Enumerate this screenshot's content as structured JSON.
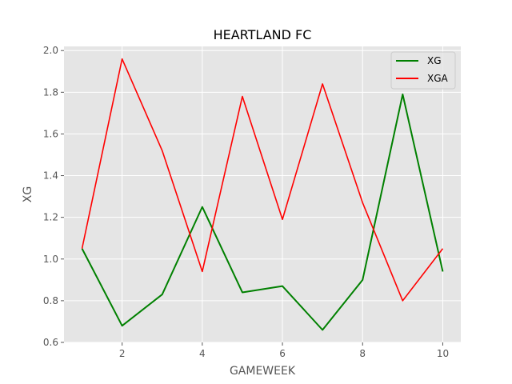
{
  "chart_data": {
    "type": "line",
    "title": "HEARTLAND FC",
    "xlabel": "GAMEWEEK",
    "ylabel": "XG",
    "x": [
      1,
      2,
      3,
      4,
      5,
      6,
      7,
      8,
      9,
      10
    ],
    "xlim": [
      0.55,
      10.45
    ],
    "ylim": [
      0.6,
      2.02
    ],
    "xticks": [
      2,
      4,
      6,
      8,
      10
    ],
    "yticks": [
      0.6,
      0.8,
      1.0,
      1.2,
      1.4,
      1.6,
      1.8,
      2.0
    ],
    "xtick_labels": [
      "2",
      "4",
      "6",
      "8",
      "10"
    ],
    "ytick_labels": [
      "0.6",
      "0.8",
      "1.0",
      "1.2",
      "1.4",
      "1.6",
      "1.8",
      "2.0"
    ],
    "grid": true,
    "legend_position": "top-right",
    "series": [
      {
        "name": "XG",
        "color": "#008000",
        "values": [
          1.05,
          0.68,
          0.83,
          1.25,
          0.84,
          0.87,
          0.66,
          0.9,
          1.79,
          0.94
        ]
      },
      {
        "name": "XGA",
        "color": "#ff0000",
        "values": [
          1.05,
          1.96,
          1.52,
          0.94,
          1.78,
          1.19,
          1.84,
          1.27,
          0.8,
          1.05
        ]
      }
    ]
  }
}
